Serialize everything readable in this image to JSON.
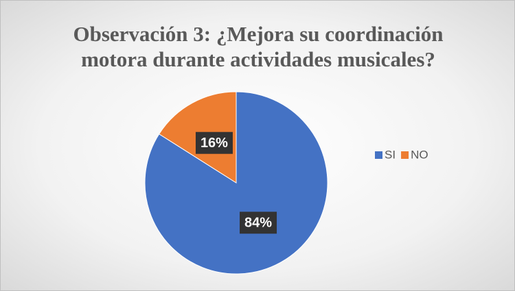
{
  "chart_data": {
    "type": "pie",
    "title": "Observación 3: ¿Mejora su coordinación motora durante actividades musicales?",
    "categories": [
      "SI",
      "NO"
    ],
    "values": [
      84,
      16
    ],
    "value_labels": [
      "84%",
      "16%"
    ],
    "colors": [
      "#4472c4",
      "#ed7d31"
    ],
    "legend": "right"
  }
}
